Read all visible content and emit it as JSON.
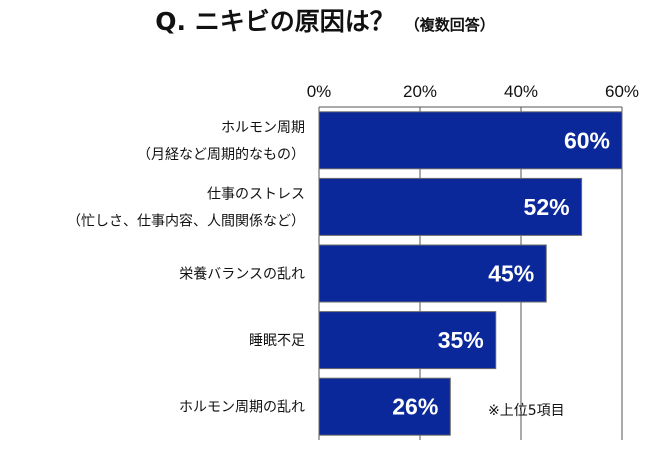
{
  "title": {
    "main": "Q. ニキビの原因は？",
    "sub": "（複数回答）"
  },
  "chart_data": {
    "type": "bar",
    "orientation": "horizontal",
    "title": "Q. ニキビの原因は？",
    "subtitle": "（複数回答）",
    "xlim": [
      0,
      60
    ],
    "x_ticks": [
      "0%",
      "20%",
      "40%",
      "60%"
    ],
    "grid": true,
    "bar_color": "#0a289a",
    "categories": [
      [
        "ホルモン周期",
        "（月経など周期的なもの）"
      ],
      [
        "仕事のストレス",
        "（忙しさ、仕事内容、人間関係など）"
      ],
      [
        "栄養バランスの乱れ"
      ],
      [
        "睡眠不足"
      ],
      [
        "ホルモン周期の乱れ"
      ]
    ],
    "values": [
      60,
      52,
      45,
      35,
      26
    ],
    "value_labels": [
      "60%",
      "52%",
      "45%",
      "35%",
      "26%"
    ],
    "note": "※上位5項目"
  }
}
